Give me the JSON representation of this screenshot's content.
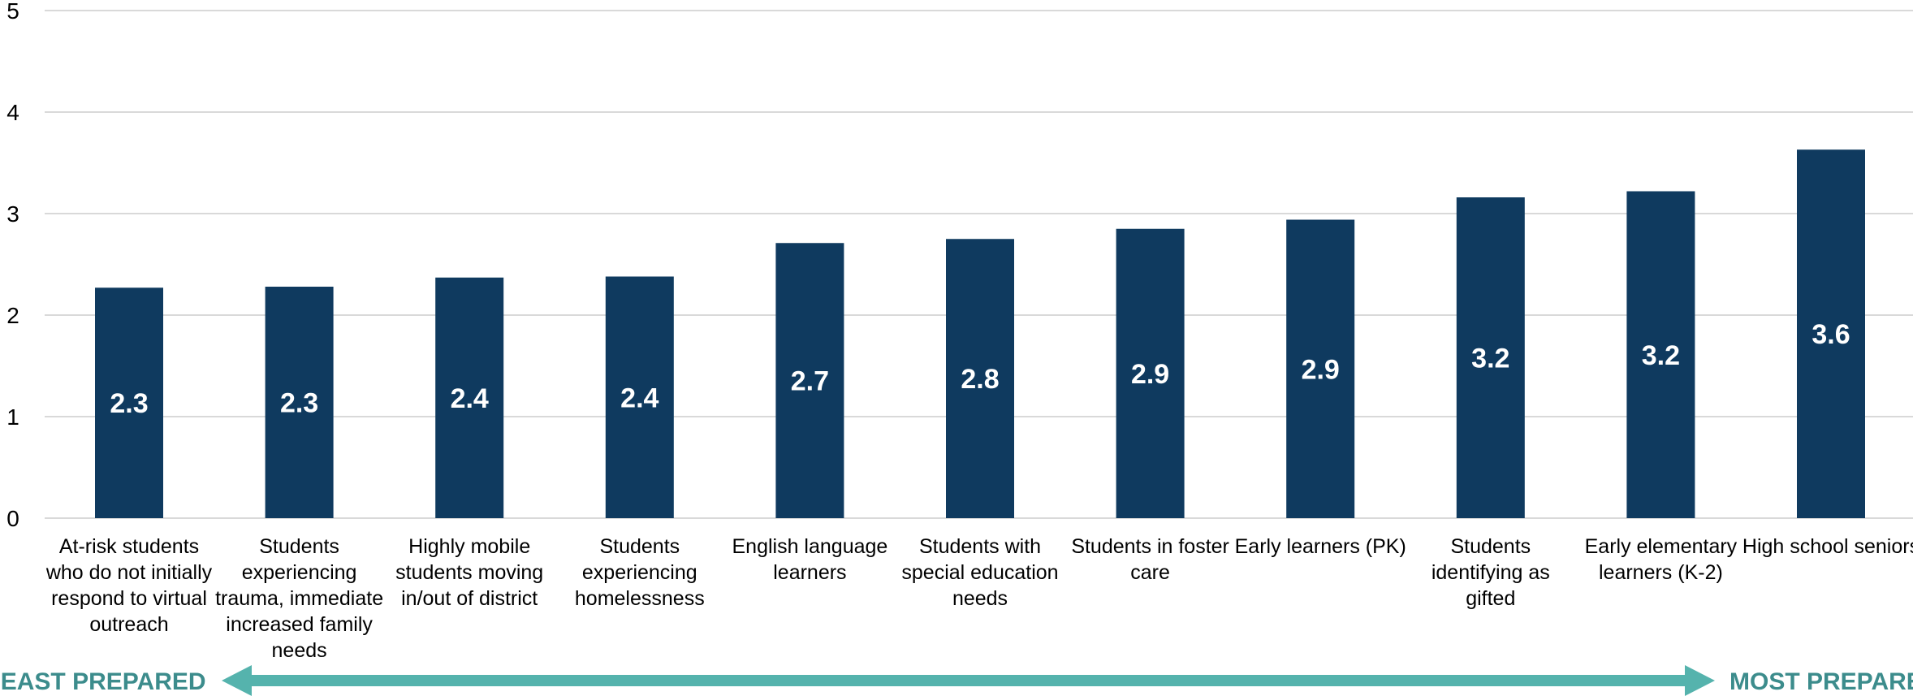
{
  "chart_data": {
    "type": "bar",
    "title": "",
    "xlabel": "",
    "ylabel": "",
    "ylim": [
      0,
      5
    ],
    "yticks": [
      0,
      1,
      2,
      3,
      4,
      5
    ],
    "grid": true,
    "legend": "none",
    "bar_color": "#0f3a5f",
    "label_color": "#ffffff",
    "categories": [
      [
        "At-risk students",
        "who do not initially",
        "respond to virtual",
        "outreach"
      ],
      [
        "Students",
        "experiencing",
        "trauma, immediate",
        "increased family",
        "needs"
      ],
      [
        "Highly mobile",
        "students moving",
        "in/out of district"
      ],
      [
        "Students",
        "experiencing",
        "homelessness"
      ],
      [
        "English language",
        "learners"
      ],
      [
        "Students with",
        "special education",
        "needs"
      ],
      [
        "Students in foster",
        "care"
      ],
      [
        "Early learners (PK)"
      ],
      [
        "Students",
        "identifying as",
        "gifted"
      ],
      [
        "Early elementary",
        "learners (K-2)"
      ],
      [
        "High school seniors"
      ]
    ],
    "values": [
      2.27,
      2.28,
      2.37,
      2.38,
      2.71,
      2.75,
      2.85,
      2.94,
      3.16,
      3.22,
      3.63
    ],
    "data_labels": [
      "2.3",
      "2.3",
      "2.4",
      "2.4",
      "2.7",
      "2.8",
      "2.9",
      "2.9",
      "3.2",
      "3.2",
      "3.6"
    ],
    "scale": {
      "left_label": "LEAST PREPARED",
      "right_label": "MOST PREPARED",
      "arrow_color": "#55b3ad",
      "text_color": "#3c8c8c"
    }
  }
}
